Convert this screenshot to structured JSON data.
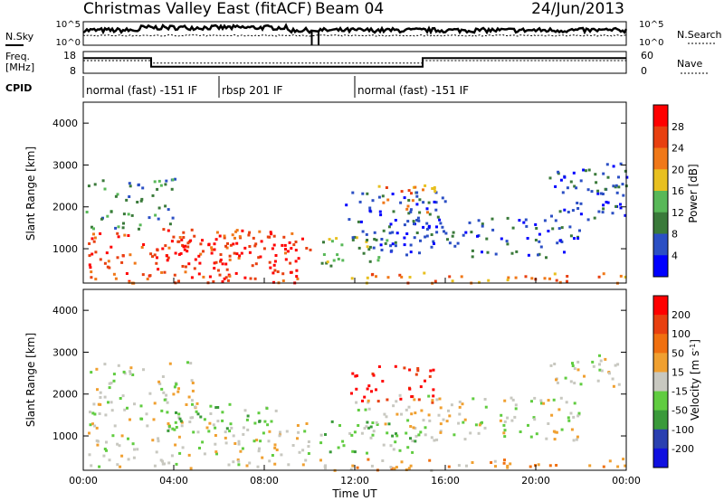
{
  "header": {
    "title": "Christmas Valley East (fitACF)",
    "beam": "Beam 04",
    "date": "24/Jun/2013"
  },
  "side_labels": {
    "nsky_label": "N.Sky",
    "nsearch_label": "N.Search",
    "freq_label_1": "Freq.",
    "freq_label_2": "[MHz]",
    "nave_label": "Nave",
    "cpid_label": "CPID"
  },
  "cpid_segments": [
    {
      "label": "normal (fast) -151 IF",
      "start_hour": 0,
      "end_hour": 6
    },
    {
      "label": "rbsp 201 IF",
      "start_hour": 6,
      "end_hour": 12
    },
    {
      "label": "normal (fast) -151 IF",
      "start_hour": 12,
      "end_hour": 24
    }
  ],
  "colors": {
    "power": [
      "#0000ff",
      "#2b4fc4",
      "#3a7a3a",
      "#58b858",
      "#e8c020",
      "#f07818",
      "#e84010",
      "#ff0000"
    ],
    "velocity": [
      "#1010e0",
      "#2a40b0",
      "#3a9a3a",
      "#60cc40",
      "#c8c8c0",
      "#f0a030",
      "#f07010",
      "#e84010",
      "#ff0000"
    ],
    "trace": "#000000"
  },
  "chart_data": [
    {
      "type": "line",
      "id": "noise",
      "x_range": [
        0,
        24
      ],
      "left_axis": {
        "label": "N.Sky",
        "ticks": [
          "10^5",
          "10^0"
        ]
      },
      "right_axis": {
        "label": "N.Search",
        "ticks": [
          "10^5",
          "10^0"
        ]
      },
      "gap_hours": [
        10.1,
        10.4
      ]
    },
    {
      "type": "line",
      "id": "frequency",
      "x_range": [
        0,
        24
      ],
      "left_axis": {
        "label": "Freq. [MHz]",
        "ticks": [
          18,
          8
        ],
        "ylim": [
          8,
          18
        ]
      },
      "right_axis": {
        "label": "Nave",
        "ticks": [
          60,
          0
        ],
        "ylim": [
          0,
          60
        ]
      },
      "series": [
        {
          "name": "Freq.",
          "x": [
            0,
            3,
            3,
            10.1,
            10.4,
            15,
            15,
            24
          ],
          "y": [
            15,
            15,
            11,
            11,
            11,
            11,
            15,
            15
          ]
        },
        {
          "name": "Nave",
          "x": [
            0,
            3,
            3,
            15,
            15,
            24
          ],
          "y": [
            35,
            35,
            28,
            28,
            35,
            35
          ]
        }
      ]
    },
    {
      "type": "heatmap",
      "id": "power",
      "xlabel": "",
      "ylabel": "Slant Range [km]",
      "xlim": [
        0,
        24
      ],
      "ylim": [
        180,
        4500
      ],
      "y_ticks": [
        1000,
        2000,
        3000,
        4000
      ],
      "colorbar": {
        "label": "Power [dB]",
        "ticks": [
          4,
          8,
          12,
          16,
          20,
          24,
          28
        ]
      },
      "regions": [
        {
          "t0": 0.2,
          "t1": 10.0,
          "r0": 200,
          "r1": 1500,
          "level": 6
        },
        {
          "t0": 3.0,
          "t1": 9.5,
          "r0": 300,
          "r1": 1350,
          "level": 7
        },
        {
          "t0": 0.1,
          "t1": 4.0,
          "r0": 1500,
          "r1": 2700,
          "level": 2
        },
        {
          "t0": 10.4,
          "t1": 13.5,
          "r0": 600,
          "r1": 1350,
          "level": 3
        },
        {
          "t0": 11.5,
          "t1": 16.0,
          "r0": 1000,
          "r1": 2400,
          "level": 1
        },
        {
          "t0": 13.0,
          "t1": 15.5,
          "r0": 1900,
          "r1": 2600,
          "level": 5
        },
        {
          "t0": 13.5,
          "t1": 22.0,
          "r0": 800,
          "r1": 1800,
          "level": 1
        },
        {
          "t0": 20.5,
          "t1": 24.0,
          "r0": 1700,
          "r1": 3100,
          "level": 1
        },
        {
          "t0": 22.0,
          "t1": 24.0,
          "r0": 2300,
          "r1": 2900,
          "level": 2
        },
        {
          "t0": 10.4,
          "t1": 24.0,
          "r0": 200,
          "r1": 450,
          "level": 5
        }
      ]
    },
    {
      "type": "heatmap",
      "id": "velocity",
      "xlabel": "Time UT",
      "ylabel": "Slant Range [km]",
      "xlim": [
        0,
        24
      ],
      "ylim": [
        180,
        4500
      ],
      "x_ticks": [
        "00:00",
        "04:00",
        "08:00",
        "12:00",
        "16:00",
        "20:00",
        "00:00"
      ],
      "y_ticks": [
        1000,
        2000,
        3000,
        4000
      ],
      "colorbar": {
        "label": "Velocity [m s^-1]",
        "ticks": [
          200,
          100,
          50,
          15,
          -15,
          -50,
          -100,
          -200
        ]
      },
      "regions": [
        {
          "t0": 0.2,
          "t1": 10.0,
          "r0": 250,
          "r1": 1400,
          "level": 4
        },
        {
          "t0": 0.1,
          "t1": 5.0,
          "r0": 1400,
          "r1": 2800,
          "level": 4
        },
        {
          "t0": 3.5,
          "t1": 8.5,
          "r0": 1100,
          "r1": 1800,
          "level": 3
        },
        {
          "t0": 10.4,
          "t1": 15.0,
          "r0": 600,
          "r1": 1400,
          "level": 3
        },
        {
          "t0": 11.8,
          "t1": 15.5,
          "r0": 1800,
          "r1": 2700,
          "level": 8
        },
        {
          "t0": 12.0,
          "t1": 22.0,
          "r0": 900,
          "r1": 2000,
          "level": 4
        },
        {
          "t0": 20.5,
          "t1": 24.0,
          "r0": 2200,
          "r1": 3000,
          "level": 4
        },
        {
          "t0": 10.4,
          "t1": 24.0,
          "r0": 200,
          "r1": 500,
          "level": 5
        }
      ]
    }
  ]
}
